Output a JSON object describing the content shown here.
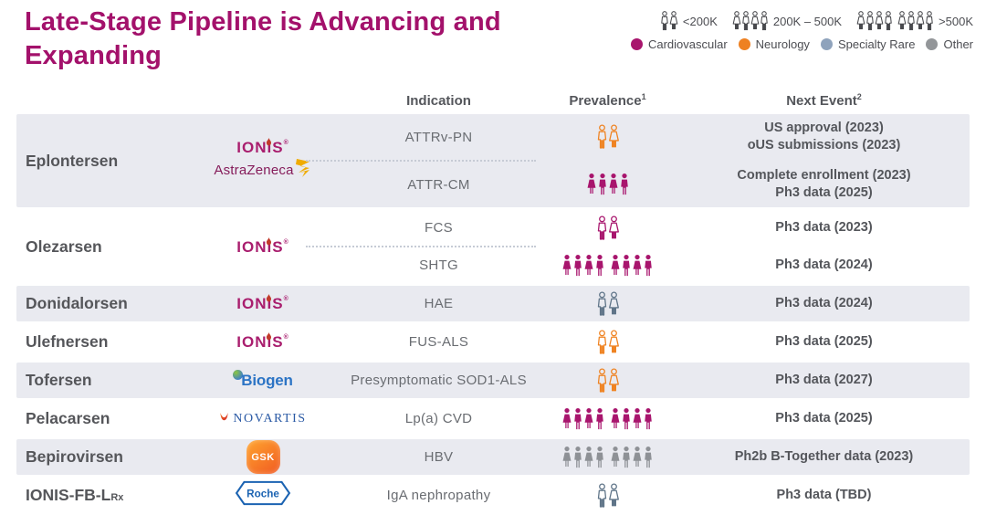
{
  "title": "Late-Stage Pipeline is Advancing and Expanding",
  "legend": {
    "size_icon_color": "#47484C",
    "sizes": [
      {
        "icon_count": 2,
        "label": "<200K"
      },
      {
        "icon_count": 4,
        "label": "200K – 500K"
      },
      {
        "icon_count": 8,
        "label": ">500K"
      }
    ],
    "categories": [
      {
        "id": "cardiovascular",
        "label": "Cardiovascular",
        "dot_color": "#A8156D"
      },
      {
        "id": "neurology",
        "label": "Neurology",
        "dot_color": "#EE8122"
      },
      {
        "id": "specialty_rare",
        "label": "Specialty Rare",
        "dot_color": "#8FA3BC"
      },
      {
        "id": "other",
        "label": "Other",
        "dot_color": "#939699"
      }
    ]
  },
  "category_icon_colors": {
    "cardiovascular": "#A8156D",
    "neurology": "#EF8322",
    "specialty_rare": "#5F7488",
    "other": "#8E9196"
  },
  "table": {
    "headers": {
      "indication": "Indication",
      "prevalence": "Prevalence",
      "prevalence_sup": "1",
      "next_event": "Next Event",
      "next_event_sup": "2"
    },
    "rows": [
      {
        "drug": "Eplontersen",
        "drug_sub": "",
        "shaded": true,
        "partners": [
          {
            "id": "ionis",
            "text": "IONIS"
          },
          {
            "id": "astrazeneca",
            "text": "AstraZeneca"
          }
        ],
        "entries": [
          {
            "indication": "ATTRv-PN",
            "category": "neurology",
            "count": 2,
            "style": "outline",
            "next_event": [
              "US approval (2023)",
              "oUS submissions (2023)"
            ]
          },
          {
            "indication": "ATTR-CM",
            "category": "cardiovascular",
            "count": 4,
            "style": "filled",
            "next_event": [
              "Complete enrollment (2023)",
              "Ph3 data (2025)"
            ]
          }
        ]
      },
      {
        "drug": "Olezarsen",
        "drug_sub": "",
        "shaded": false,
        "partners": [
          {
            "id": "ionis",
            "text": "IONIS"
          }
        ],
        "entries": [
          {
            "indication": "FCS",
            "category": "cardiovascular",
            "count": 2,
            "style": "outline",
            "next_event": [
              "Ph3 data (2023)"
            ]
          },
          {
            "indication": "SHTG",
            "category": "cardiovascular",
            "count": 8,
            "style": "filled",
            "next_event": [
              "Ph3 data (2024)"
            ]
          }
        ]
      },
      {
        "drug": "Donidalorsen",
        "drug_sub": "",
        "shaded": true,
        "partners": [
          {
            "id": "ionis",
            "text": "IONIS"
          }
        ],
        "entries": [
          {
            "indication": "HAE",
            "category": "specialty_rare",
            "count": 2,
            "style": "outline",
            "next_event": [
              "Ph3 data (2024)"
            ]
          }
        ]
      },
      {
        "drug": "Ulefnersen",
        "drug_sub": "",
        "shaded": false,
        "partners": [
          {
            "id": "ionis",
            "text": "IONIS"
          }
        ],
        "entries": [
          {
            "indication": "FUS-ALS",
            "category": "neurology",
            "count": 2,
            "style": "outline",
            "next_event": [
              "Ph3 data (2025)"
            ]
          }
        ]
      },
      {
        "drug": "Tofersen",
        "drug_sub": "",
        "shaded": true,
        "partners": [
          {
            "id": "biogen",
            "text": "Biogen"
          }
        ],
        "entries": [
          {
            "indication": "Presymptomatic SOD1-ALS",
            "category": "neurology",
            "count": 2,
            "style": "outline",
            "next_event": [
              "Ph3 data (2027)"
            ]
          }
        ]
      },
      {
        "drug": "Pelacarsen",
        "drug_sub": "",
        "shaded": false,
        "partners": [
          {
            "id": "novartis",
            "text": "NOVARTIS"
          }
        ],
        "entries": [
          {
            "indication": "Lp(a) CVD",
            "category": "cardiovascular",
            "count": 8,
            "style": "filled",
            "next_event": [
              "Ph3 data (2025)"
            ]
          }
        ]
      },
      {
        "drug": "Bepirovirsen",
        "drug_sub": "",
        "shaded": true,
        "partners": [
          {
            "id": "gsk",
            "text": "GSK"
          }
        ],
        "entries": [
          {
            "indication": "HBV",
            "category": "other",
            "count": 8,
            "style": "filled",
            "next_event": [
              "Ph2b B-Together data (2023)"
            ]
          }
        ]
      },
      {
        "drug": "IONIS-FB-L",
        "drug_sub": "Rx",
        "shaded": false,
        "partners": [
          {
            "id": "roche",
            "text": "Roche"
          }
        ],
        "entries": [
          {
            "indication": "IgA nephropathy",
            "category": "specialty_rare",
            "count": 2,
            "style": "outline",
            "next_event": [
              "Ph3 data (TBD)"
            ]
          }
        ]
      }
    ]
  }
}
